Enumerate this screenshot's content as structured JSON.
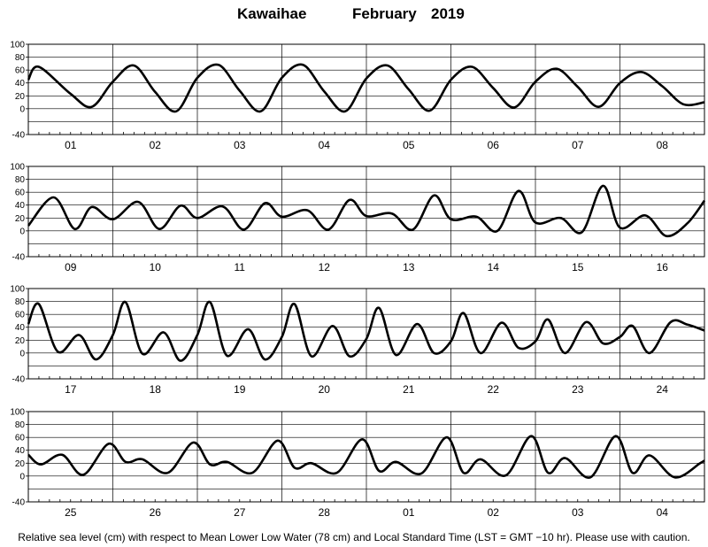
{
  "title": {
    "station": "Kawaihae",
    "month": "February",
    "year": "2019"
  },
  "footnote": "Relative sea level (cm) with respect to Mean Lower Low Water (78 cm) and Local Standard Time (LST = GMT −10 hr). Please use with caution.",
  "colors": {
    "curve": "#000000",
    "grid": "#000000",
    "background": "#ffffff"
  },
  "chart_data": [
    {
      "type": "line",
      "days": [
        "01",
        "02",
        "03",
        "04",
        "05",
        "06",
        "07",
        "08"
      ],
      "y_ticks": [
        100,
        80,
        60,
        40,
        20,
        0,
        -40
      ],
      "ylim": [
        -40,
        100
      ],
      "x": [
        0.0,
        0.125,
        0.5,
        0.75,
        1.0,
        1.25,
        1.5,
        1.75,
        2.0,
        2.25,
        2.5,
        2.75,
        3.0,
        3.25,
        3.5,
        3.75,
        4.0,
        4.25,
        4.5,
        4.75,
        5.0,
        5.25,
        5.5,
        5.75,
        6.0,
        6.25,
        6.5,
        6.75,
        7.0,
        7.25,
        7.5,
        7.75,
        8.0
      ],
      "y": [
        45,
        65,
        23,
        3,
        42,
        67,
        26,
        -4,
        48,
        68,
        28,
        -4,
        48,
        68,
        27,
        -4,
        47,
        67,
        30,
        -3,
        45,
        65,
        32,
        2,
        42,
        62,
        34,
        3,
        40,
        57,
        35,
        7,
        10
      ]
    },
    {
      "type": "line",
      "days": [
        "09",
        "10",
        "11",
        "12",
        "13",
        "14",
        "15",
        "16"
      ],
      "y_ticks": [
        100,
        80,
        60,
        40,
        20,
        0,
        -40
      ],
      "ylim": [
        -40,
        100
      ],
      "x": [
        0.0,
        0.3,
        0.55,
        0.75,
        1.0,
        1.3,
        1.55,
        1.8,
        2.0,
        2.3,
        2.55,
        2.8,
        3.0,
        3.3,
        3.55,
        3.8,
        4.0,
        4.3,
        4.55,
        4.8,
        5.0,
        5.3,
        5.55,
        5.8,
        6.0,
        6.3,
        6.55,
        6.8,
        7.0,
        7.3,
        7.55,
        7.8,
        8.0
      ],
      "y": [
        8,
        52,
        3,
        37,
        18,
        45,
        3,
        39,
        20,
        38,
        2,
        43,
        22,
        32,
        2,
        48,
        23,
        27,
        2,
        55,
        18,
        22,
        0,
        62,
        13,
        20,
        -2,
        70,
        5,
        24,
        -8,
        12,
        47
      ]
    },
    {
      "type": "line",
      "days": [
        "17",
        "18",
        "19",
        "20",
        "21",
        "22",
        "23",
        "24"
      ],
      "y_ticks": [
        100,
        80,
        60,
        40,
        20,
        0,
        -40
      ],
      "ylim": [
        -40,
        100
      ],
      "x": [
        0.0,
        0.125,
        0.35,
        0.6,
        0.8,
        1.0,
        1.15,
        1.35,
        1.6,
        1.8,
        2.0,
        2.15,
        2.35,
        2.6,
        2.8,
        3.0,
        3.15,
        3.35,
        3.6,
        3.8,
        4.0,
        4.15,
        4.35,
        4.6,
        4.8,
        5.0,
        5.15,
        5.35,
        5.6,
        5.8,
        6.0,
        6.15,
        6.35,
        6.6,
        6.8,
        7.0,
        7.15,
        7.35,
        7.6,
        7.8,
        8.0
      ],
      "y": [
        45,
        76,
        2,
        28,
        -10,
        28,
        79,
        -1,
        32,
        -12,
        28,
        79,
        -4,
        37,
        -10,
        25,
        76,
        -5,
        42,
        -5,
        22,
        70,
        -3,
        45,
        0,
        18,
        62,
        0,
        47,
        8,
        18,
        52,
        0,
        48,
        15,
        25,
        42,
        0,
        48,
        44,
        35
      ]
    },
    {
      "type": "line",
      "days": [
        "25",
        "26",
        "27",
        "28",
        "01",
        "02",
        "03",
        "04"
      ],
      "y_ticks": [
        100,
        80,
        60,
        40,
        20,
        0,
        -40
      ],
      "ylim": [
        -40,
        100
      ],
      "x": [
        0.0,
        0.15,
        0.4,
        0.65,
        0.95,
        1.15,
        1.35,
        1.65,
        1.95,
        2.15,
        2.35,
        2.65,
        2.95,
        3.15,
        3.35,
        3.65,
        3.95,
        4.15,
        4.35,
        4.65,
        4.95,
        5.15,
        5.35,
        5.65,
        5.95,
        6.15,
        6.35,
        6.65,
        6.95,
        7.15,
        7.35,
        7.65,
        7.95,
        8.0
      ],
      "y": [
        33,
        18,
        33,
        2,
        50,
        22,
        26,
        5,
        52,
        18,
        22,
        5,
        55,
        13,
        20,
        5,
        57,
        8,
        22,
        4,
        60,
        5,
        26,
        1,
        62,
        5,
        28,
        -2,
        62,
        5,
        32,
        -2,
        20,
        24
      ]
    }
  ]
}
